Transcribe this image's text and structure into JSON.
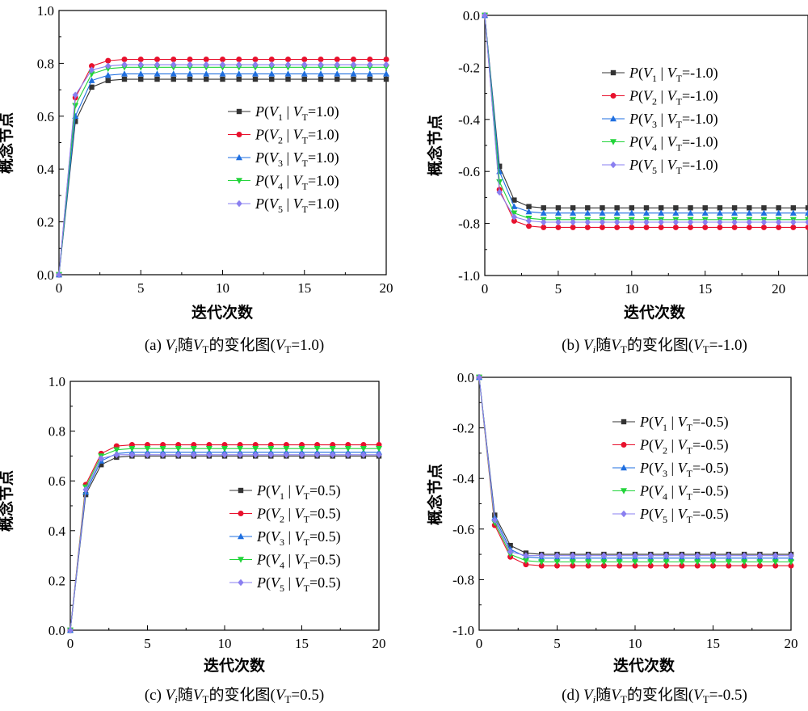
{
  "chart_data": [
    {
      "type": "line",
      "caption": {
        "prefix": "(a) ",
        "v": "V",
        "i": "i",
        "mid": "随",
        "vt": "V",
        "t": "T",
        "text": "的变化图(",
        "v2": "V",
        "t2": "T",
        "eq": "=1.0)"
      },
      "xlabel": "迭代次数",
      "ylabel": "概念节点",
      "xlim": [
        0,
        20
      ],
      "ylim": [
        0,
        1
      ],
      "xticks": [
        "0",
        "5",
        "10",
        "15",
        "20"
      ],
      "xtick_values": [
        0,
        5,
        10,
        15,
        20
      ],
      "yticks": [
        "0.0",
        "0.2",
        "0.4",
        "0.6",
        "0.8",
        "1.0"
      ],
      "ytick_values": [
        0,
        0.2,
        0.4,
        0.6,
        0.8,
        1.0
      ],
      "legend_position": "center-right",
      "legend_value": "1.0",
      "x": [
        0,
        1,
        2,
        3,
        4,
        5,
        6,
        7,
        8,
        9,
        10,
        11,
        12,
        13,
        14,
        15,
        16,
        17,
        18,
        19,
        20
      ],
      "series": [
        {
          "name": "1",
          "color": "#333333",
          "marker": "square",
          "values": [
            0,
            0.58,
            0.71,
            0.735,
            0.74,
            0.74,
            0.74,
            0.74,
            0.74,
            0.74,
            0.74,
            0.74,
            0.74,
            0.74,
            0.74,
            0.74,
            0.74,
            0.74,
            0.74,
            0.74,
            0.74
          ]
        },
        {
          "name": "2",
          "color": "#e8112d",
          "marker": "circle",
          "values": [
            0,
            0.67,
            0.79,
            0.81,
            0.815,
            0.815,
            0.815,
            0.815,
            0.815,
            0.815,
            0.815,
            0.815,
            0.815,
            0.815,
            0.815,
            0.815,
            0.815,
            0.815,
            0.815,
            0.815,
            0.815
          ]
        },
        {
          "name": "3",
          "color": "#1f6fe0",
          "marker": "triangle",
          "values": [
            0,
            0.6,
            0.735,
            0.755,
            0.76,
            0.76,
            0.76,
            0.76,
            0.76,
            0.76,
            0.76,
            0.76,
            0.76,
            0.76,
            0.76,
            0.76,
            0.76,
            0.76,
            0.76,
            0.76,
            0.76
          ]
        },
        {
          "name": "4",
          "color": "#22d43a",
          "marker": "triangle-down",
          "values": [
            0,
            0.64,
            0.76,
            0.78,
            0.785,
            0.785,
            0.785,
            0.785,
            0.785,
            0.785,
            0.785,
            0.785,
            0.785,
            0.785,
            0.785,
            0.785,
            0.785,
            0.785,
            0.785,
            0.785,
            0.785
          ]
        },
        {
          "name": "5",
          "color": "#8a7ff0",
          "marker": "diamond",
          "values": [
            0,
            0.68,
            0.775,
            0.79,
            0.795,
            0.795,
            0.795,
            0.795,
            0.795,
            0.795,
            0.795,
            0.795,
            0.795,
            0.795,
            0.795,
            0.795,
            0.795,
            0.795,
            0.795,
            0.795,
            0.795
          ]
        }
      ]
    },
    {
      "type": "line",
      "caption": {
        "prefix": "(b) ",
        "v": "V",
        "i": "i",
        "mid": "随",
        "vt": "V",
        "t": "T",
        "text": "的变化图(",
        "v2": "V",
        "t2": "T",
        "eq": "=-1.0)"
      },
      "xlabel": "迭代次数",
      "ylabel": "概念节点",
      "xlim": [
        0,
        22
      ],
      "ylim": [
        -1,
        0
      ],
      "xticks": [
        "0",
        "5",
        "10",
        "15",
        "20"
      ],
      "xtick_values": [
        0,
        5,
        10,
        15,
        20
      ],
      "yticks": [
        "-1.0",
        "-0.8",
        "-0.6",
        "-0.4",
        "-0.2",
        "0.0"
      ],
      "ytick_values": [
        -1.0,
        -0.8,
        -0.6,
        -0.4,
        -0.2,
        0.0
      ],
      "legend_position": "top-right",
      "legend_value": "-1.0",
      "x": [
        0,
        1,
        2,
        3,
        4,
        5,
        6,
        7,
        8,
        9,
        10,
        11,
        12,
        13,
        14,
        15,
        16,
        17,
        18,
        19,
        20,
        21,
        22
      ],
      "series": [
        {
          "name": "1",
          "color": "#333333",
          "marker": "square",
          "values": [
            0,
            -0.58,
            -0.71,
            -0.735,
            -0.74,
            -0.74,
            -0.74,
            -0.74,
            -0.74,
            -0.74,
            -0.74,
            -0.74,
            -0.74,
            -0.74,
            -0.74,
            -0.74,
            -0.74,
            -0.74,
            -0.74,
            -0.74,
            -0.74,
            -0.74,
            -0.74
          ]
        },
        {
          "name": "2",
          "color": "#e8112d",
          "marker": "circle",
          "values": [
            0,
            -0.67,
            -0.79,
            -0.81,
            -0.815,
            -0.815,
            -0.815,
            -0.815,
            -0.815,
            -0.815,
            -0.815,
            -0.815,
            -0.815,
            -0.815,
            -0.815,
            -0.815,
            -0.815,
            -0.815,
            -0.815,
            -0.815,
            -0.815,
            -0.815,
            -0.815
          ]
        },
        {
          "name": "3",
          "color": "#1f6fe0",
          "marker": "triangle",
          "values": [
            0,
            -0.6,
            -0.735,
            -0.755,
            -0.76,
            -0.76,
            -0.76,
            -0.76,
            -0.76,
            -0.76,
            -0.76,
            -0.76,
            -0.76,
            -0.76,
            -0.76,
            -0.76,
            -0.76,
            -0.76,
            -0.76,
            -0.76,
            -0.76,
            -0.76,
            -0.76
          ]
        },
        {
          "name": "4",
          "color": "#22d43a",
          "marker": "triangle-down",
          "values": [
            0,
            -0.64,
            -0.76,
            -0.78,
            -0.785,
            -0.785,
            -0.785,
            -0.785,
            -0.785,
            -0.785,
            -0.785,
            -0.785,
            -0.785,
            -0.785,
            -0.785,
            -0.785,
            -0.785,
            -0.785,
            -0.785,
            -0.785,
            -0.785,
            -0.785,
            -0.785
          ]
        },
        {
          "name": "5",
          "color": "#8a7ff0",
          "marker": "diamond",
          "values": [
            0,
            -0.68,
            -0.775,
            -0.79,
            -0.795,
            -0.795,
            -0.795,
            -0.795,
            -0.795,
            -0.795,
            -0.795,
            -0.795,
            -0.795,
            -0.795,
            -0.795,
            -0.795,
            -0.795,
            -0.795,
            -0.795,
            -0.795,
            -0.795,
            -0.795,
            -0.795
          ]
        }
      ]
    },
    {
      "type": "line",
      "caption": {
        "prefix": "(c) ",
        "v": "V",
        "i": "i",
        "mid": "随",
        "vt": "V",
        "t": "T",
        "text": "的变化图(",
        "v2": "V",
        "t2": "T",
        "eq": "=0.5)"
      },
      "xlabel": "迭代次数",
      "ylabel": "概念节点",
      "xlim": [
        0,
        20
      ],
      "ylim": [
        0,
        1
      ],
      "xticks": [
        "0",
        "5",
        "10",
        "15",
        "20"
      ],
      "xtick_values": [
        0,
        5,
        10,
        15,
        20
      ],
      "yticks": [
        "0.0",
        "0.2",
        "0.4",
        "0.6",
        "0.8",
        "1.0"
      ],
      "ytick_values": [
        0,
        0.2,
        0.4,
        0.6,
        0.8,
        1.0
      ],
      "legend_position": "center-right",
      "legend_value": "0.5",
      "x": [
        0,
        1,
        2,
        3,
        4,
        5,
        6,
        7,
        8,
        9,
        10,
        11,
        12,
        13,
        14,
        15,
        16,
        17,
        18,
        19,
        20
      ],
      "series": [
        {
          "name": "1",
          "color": "#333333",
          "marker": "square",
          "values": [
            0,
            0.545,
            0.665,
            0.695,
            0.7,
            0.7,
            0.7,
            0.7,
            0.7,
            0.7,
            0.7,
            0.7,
            0.7,
            0.7,
            0.7,
            0.7,
            0.7,
            0.7,
            0.7,
            0.7,
            0.7
          ]
        },
        {
          "name": "2",
          "color": "#e8112d",
          "marker": "circle",
          "values": [
            0,
            0.585,
            0.71,
            0.74,
            0.745,
            0.745,
            0.745,
            0.745,
            0.745,
            0.745,
            0.745,
            0.745,
            0.745,
            0.745,
            0.745,
            0.745,
            0.745,
            0.745,
            0.745,
            0.745,
            0.745
          ]
        },
        {
          "name": "3",
          "color": "#1f6fe0",
          "marker": "triangle",
          "values": [
            0,
            0.555,
            0.68,
            0.71,
            0.715,
            0.715,
            0.715,
            0.715,
            0.715,
            0.715,
            0.715,
            0.715,
            0.715,
            0.715,
            0.715,
            0.715,
            0.715,
            0.715,
            0.715,
            0.715,
            0.715
          ]
        },
        {
          "name": "4",
          "color": "#22d43a",
          "marker": "triangle-down",
          "values": [
            0,
            0.575,
            0.7,
            0.725,
            0.73,
            0.73,
            0.73,
            0.73,
            0.73,
            0.73,
            0.73,
            0.73,
            0.73,
            0.73,
            0.73,
            0.73,
            0.73,
            0.73,
            0.73,
            0.73,
            0.73
          ]
        },
        {
          "name": "5",
          "color": "#8a7ff0",
          "marker": "diamond",
          "values": [
            0,
            0.565,
            0.69,
            0.705,
            0.705,
            0.705,
            0.705,
            0.705,
            0.705,
            0.705,
            0.705,
            0.705,
            0.705,
            0.705,
            0.705,
            0.705,
            0.705,
            0.705,
            0.705,
            0.705,
            0.705
          ]
        }
      ]
    },
    {
      "type": "line",
      "caption": {
        "prefix": "(d) ",
        "v": "V",
        "i": "i",
        "mid": "随",
        "vt": "V",
        "t": "T",
        "text": "的变化图(",
        "v2": "V",
        "t2": "T",
        "eq": "=-0.5)"
      },
      "xlabel": "迭代次数",
      "ylabel": "概念节点",
      "xlim": [
        0,
        20
      ],
      "ylim": [
        -1,
        0
      ],
      "xticks": [
        "0",
        "5",
        "10",
        "15",
        "20"
      ],
      "xtick_values": [
        0,
        5,
        10,
        15,
        20
      ],
      "yticks": [
        "-1.0",
        "-0.8",
        "-0.6",
        "-0.4",
        "-0.2",
        "0.0"
      ],
      "ytick_values": [
        -1.0,
        -0.8,
        -0.6,
        -0.4,
        -0.2,
        0.0
      ],
      "legend_position": "top-right",
      "legend_value": "-0.5",
      "x": [
        0,
        1,
        2,
        3,
        4,
        5,
        6,
        7,
        8,
        9,
        10,
        11,
        12,
        13,
        14,
        15,
        16,
        17,
        18,
        19,
        20
      ],
      "series": [
        {
          "name": "1",
          "color": "#333333",
          "marker": "square",
          "values": [
            0,
            -0.545,
            -0.665,
            -0.695,
            -0.7,
            -0.7,
            -0.7,
            -0.7,
            -0.7,
            -0.7,
            -0.7,
            -0.7,
            -0.7,
            -0.7,
            -0.7,
            -0.7,
            -0.7,
            -0.7,
            -0.7,
            -0.7,
            -0.7
          ]
        },
        {
          "name": "2",
          "color": "#e8112d",
          "marker": "circle",
          "values": [
            0,
            -0.585,
            -0.71,
            -0.74,
            -0.745,
            -0.745,
            -0.745,
            -0.745,
            -0.745,
            -0.745,
            -0.745,
            -0.745,
            -0.745,
            -0.745,
            -0.745,
            -0.745,
            -0.745,
            -0.745,
            -0.745,
            -0.745,
            -0.745
          ]
        },
        {
          "name": "3",
          "color": "#1f6fe0",
          "marker": "triangle",
          "values": [
            0,
            -0.555,
            -0.68,
            -0.71,
            -0.715,
            -0.715,
            -0.715,
            -0.715,
            -0.715,
            -0.715,
            -0.715,
            -0.715,
            -0.715,
            -0.715,
            -0.715,
            -0.715,
            -0.715,
            -0.715,
            -0.715,
            -0.715,
            -0.715
          ]
        },
        {
          "name": "4",
          "color": "#22d43a",
          "marker": "triangle-down",
          "values": [
            0,
            -0.575,
            -0.7,
            -0.725,
            -0.73,
            -0.73,
            -0.73,
            -0.73,
            -0.73,
            -0.73,
            -0.73,
            -0.73,
            -0.73,
            -0.73,
            -0.73,
            -0.73,
            -0.73,
            -0.73,
            -0.73,
            -0.73,
            -0.73
          ]
        },
        {
          "name": "5",
          "color": "#8a7ff0",
          "marker": "diamond",
          "values": [
            0,
            -0.565,
            -0.69,
            -0.705,
            -0.705,
            -0.705,
            -0.705,
            -0.705,
            -0.705,
            -0.705,
            -0.705,
            -0.705,
            -0.705,
            -0.705,
            -0.705,
            -0.705,
            -0.705,
            -0.705,
            -0.705,
            -0.705,
            -0.705
          ]
        }
      ]
    }
  ],
  "legend_template": {
    "p": "P",
    "open": "(",
    "v": "V",
    "bar": " | ",
    "vt": "V",
    "t": "T",
    "eq": "="
  }
}
